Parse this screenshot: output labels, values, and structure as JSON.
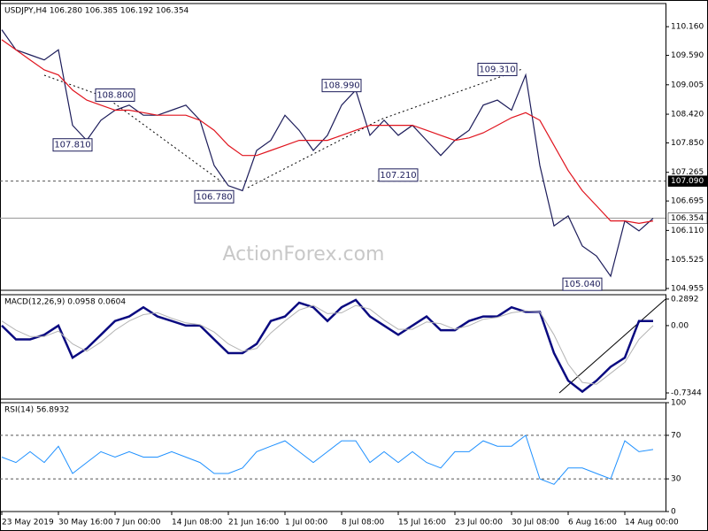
{
  "chart_data": [
    {
      "type": "line",
      "title": "USDJPY,H4  106.280 106.385 106.192 106.354",
      "watermark": "ActionForex.com",
      "categories": [
        "23 May 2019",
        null,
        null,
        null,
        "30 May 16:00",
        null,
        null,
        null,
        "7 Jun 00:00",
        null,
        null,
        null,
        "14 Jun 08:00",
        null,
        null,
        null,
        "21 Jun 16:00",
        null,
        null,
        null,
        "1 Jul 00:00",
        null,
        null,
        null,
        "8 Jul 08:00",
        null,
        null,
        null,
        "15 Jul 16:00",
        null,
        null,
        null,
        "23 Jul 00:00",
        null,
        null,
        null,
        "30 Jul 08:00",
        null,
        null,
        null,
        "6 Aug 16:00",
        null,
        null,
        null,
        "14 Aug 00:00",
        null,
        null
      ],
      "series": [
        {
          "name": "USDJPY",
          "color": "#1c1c5a",
          "values": [
            110.1,
            109.7,
            109.6,
            109.5,
            109.7,
            108.2,
            107.9,
            108.3,
            108.5,
            108.6,
            108.4,
            108.4,
            108.5,
            108.6,
            108.3,
            107.4,
            107.0,
            106.9,
            107.7,
            107.9,
            108.4,
            108.1,
            107.7,
            108.0,
            108.6,
            108.9,
            108.0,
            108.3,
            108.0,
            108.2,
            107.9,
            107.6,
            107.9,
            108.1,
            108.6,
            108.7,
            108.5,
            109.2,
            107.4,
            106.2,
            106.4,
            105.8,
            105.6,
            105.2,
            106.3,
            106.1,
            106.35
          ]
        },
        {
          "name": "MA",
          "color": "#e0141e",
          "values": [
            109.9,
            109.7,
            109.5,
            109.3,
            109.2,
            108.9,
            108.7,
            108.6,
            108.5,
            108.5,
            108.45,
            108.4,
            108.4,
            108.4,
            108.3,
            108.1,
            107.8,
            107.6,
            107.6,
            107.7,
            107.8,
            107.9,
            107.9,
            107.9,
            108.0,
            108.1,
            108.2,
            108.2,
            108.2,
            108.2,
            108.1,
            108.0,
            107.9,
            107.95,
            108.05,
            108.2,
            108.35,
            108.45,
            108.3,
            107.8,
            107.3,
            106.9,
            106.6,
            106.3,
            106.3,
            106.25,
            106.3
          ]
        }
      ],
      "annotations": [
        {
          "index": 5,
          "value": 107.81,
          "label": "107.810"
        },
        {
          "index": 8,
          "value": 108.8,
          "label": "108.800"
        },
        {
          "index": 15,
          "value": 106.78,
          "label": "106.780"
        },
        {
          "index": 24,
          "value": 108.99,
          "label": "108.990"
        },
        {
          "index": 28,
          "value": 107.21,
          "label": "107.210"
        },
        {
          "index": 35,
          "value": 109.31,
          "label": "109.310"
        },
        {
          "index": 41,
          "value": 105.04,
          "label": "105.040"
        }
      ],
      "levels": [
        {
          "value": 107.09,
          "label": "107.090",
          "style": "dashed"
        },
        {
          "value": 106.354,
          "label": "106.354",
          "style": "solid"
        }
      ],
      "ylim": [
        104.92,
        110.62
      ],
      "yticks": [
        {
          "value": 110.16,
          "label": "110.160"
        },
        {
          "value": 109.59,
          "label": "109.590"
        },
        109.005,
        {
          "value": 108.42,
          "label": "108.420"
        },
        {
          "value": 107.85,
          "label": "107.850"
        },
        107.265,
        106.695,
        {
          "value": 106.11,
          "label": "106.110"
        },
        105.525,
        104.955
      ]
    },
    {
      "type": "line",
      "title": "MACD(12,26,9) 0.0958 0.0604",
      "series": [
        {
          "name": "MACD",
          "color": "#0a0a80",
          "width": 2.5,
          "values": [
            0.0,
            -0.15,
            -0.15,
            -0.1,
            0.0,
            -0.35,
            -0.25,
            -0.1,
            0.05,
            0.1,
            0.2,
            0.1,
            0.05,
            0.0,
            0.0,
            -0.15,
            -0.3,
            -0.3,
            -0.2,
            0.05,
            0.1,
            0.25,
            0.2,
            0.05,
            0.2,
            0.28,
            0.1,
            0.0,
            -0.1,
            0.0,
            0.1,
            -0.05,
            -0.05,
            0.05,
            0.1,
            0.1,
            0.2,
            0.15,
            0.15,
            -0.3,
            -0.6,
            -0.72,
            -0.6,
            -0.45,
            -0.35,
            0.05,
            0.05
          ]
        },
        {
          "name": "Signal",
          "color": "#b4b4b4",
          "width": 1,
          "values": [
            0.05,
            -0.05,
            -0.12,
            -0.12,
            -0.06,
            -0.2,
            -0.28,
            -0.18,
            -0.05,
            0.05,
            0.12,
            0.14,
            0.08,
            0.03,
            0.01,
            -0.07,
            -0.2,
            -0.28,
            -0.25,
            -0.08,
            0.05,
            0.17,
            0.22,
            0.13,
            0.14,
            0.22,
            0.18,
            0.06,
            -0.04,
            -0.04,
            0.04,
            0.02,
            -0.04,
            0.0,
            0.07,
            0.09,
            0.14,
            0.16,
            0.15,
            -0.1,
            -0.42,
            -0.62,
            -0.64,
            -0.52,
            -0.4,
            -0.15,
            0.0
          ]
        }
      ],
      "ylim": [
        -0.802,
        0.337
      ],
      "yticks": [
        0.2892,
        {
          "value": 0,
          "label": "0.00"
        },
        -0.7344
      ]
    },
    {
      "type": "line",
      "title": "RSI(14) 56.8932",
      "series": [
        {
          "name": "RSI",
          "color": "#1e90ff",
          "width": 1,
          "values": [
            50,
            45,
            55,
            45,
            60,
            35,
            45,
            55,
            50,
            55,
            50,
            50,
            55,
            50,
            45,
            35,
            35,
            40,
            55,
            60,
            65,
            55,
            45,
            55,
            65,
            65,
            45,
            55,
            45,
            55,
            45,
            40,
            55,
            55,
            65,
            60,
            60,
            70,
            30,
            25,
            40,
            40,
            35,
            30,
            65,
            55,
            57
          ]
        }
      ],
      "levels": [
        {
          "value": 70,
          "style": "dashed"
        },
        {
          "value": 30,
          "style": "dashed"
        }
      ],
      "ylim": [
        0,
        100
      ],
      "yticks": [
        100,
        70,
        30,
        0
      ]
    }
  ]
}
